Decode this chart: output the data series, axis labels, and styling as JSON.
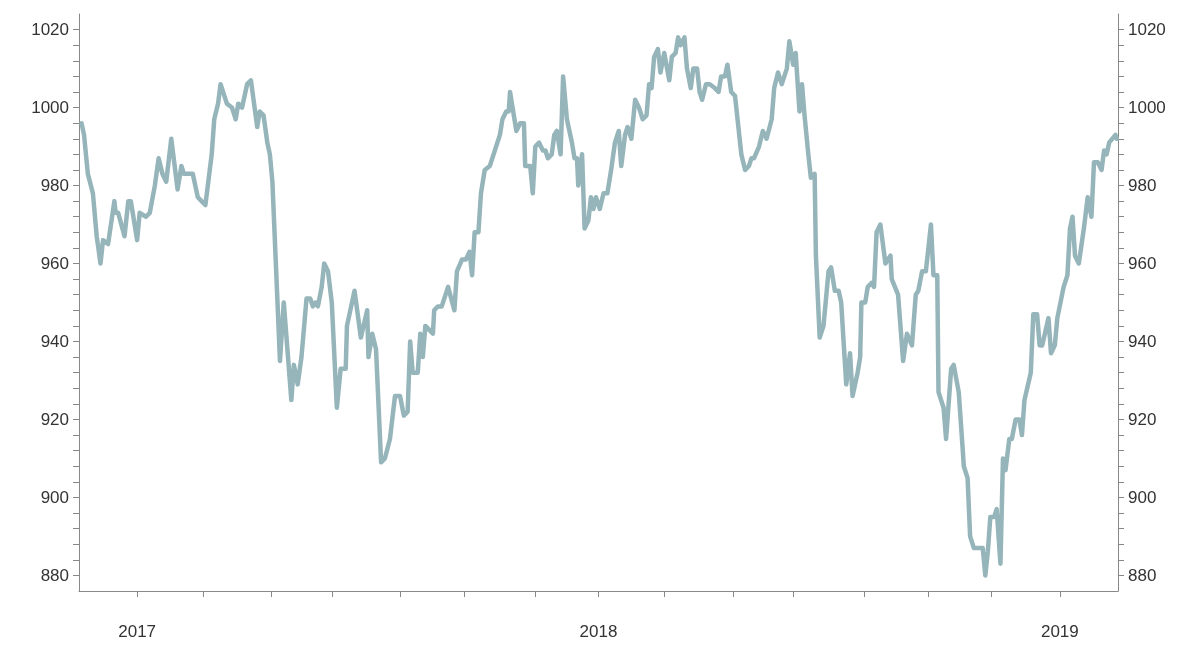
{
  "chart_data": {
    "type": "line",
    "marker": "none",
    "line_style": "solid",
    "xlim": [
      "2016-11-16",
      "2019-02-16"
    ],
    "xticks": [
      {
        "value": "2017-01-01",
        "label": "2017"
      },
      {
        "value": "2017-02-22",
        "label": null
      },
      {
        "value": "2017-04-17",
        "label": null
      },
      {
        "value": "2017-06-04",
        "label": null
      },
      {
        "value": "2017-07-28",
        "label": null
      },
      {
        "value": "2017-09-17",
        "label": null
      },
      {
        "value": "2017-11-12",
        "label": null
      },
      {
        "value": "2018-01-01",
        "label": "2018"
      },
      {
        "value": "2018-02-22",
        "label": null
      },
      {
        "value": "2018-04-18",
        "label": null
      },
      {
        "value": "2018-06-04",
        "label": null
      },
      {
        "value": "2018-07-30",
        "label": null
      },
      {
        "value": "2018-09-19",
        "label": null
      },
      {
        "value": "2018-11-08",
        "label": null
      },
      {
        "value": "2019-01-01",
        "label": "2019"
      }
    ],
    "ylim": [
      876,
      1024
    ],
    "yticks": [
      880,
      {
        "value": 884,
        "label": null
      },
      {
        "value": 888,
        "label": null
      },
      {
        "value": 892,
        "label": null
      },
      {
        "value": 896,
        "label": null
      },
      900,
      {
        "value": 904,
        "label": null
      },
      {
        "value": 908,
        "label": null
      },
      {
        "value": 912,
        "label": null
      },
      {
        "value": 916,
        "label": null
      },
      920,
      {
        "value": 924,
        "label": null
      },
      {
        "value": 928,
        "label": null
      },
      {
        "value": 932,
        "label": null
      },
      {
        "value": 936,
        "label": null
      },
      940,
      {
        "value": 944,
        "label": null
      },
      {
        "value": 948,
        "label": null
      },
      {
        "value": 952,
        "label": null
      },
      {
        "value": 956,
        "label": null
      },
      960,
      {
        "value": 964,
        "label": null
      },
      {
        "value": 968,
        "label": null
      },
      {
        "value": 972,
        "label": null
      },
      {
        "value": 976,
        "label": null
      },
      980,
      {
        "value": 984,
        "label": null
      },
      {
        "value": 988,
        "label": null
      },
      {
        "value": 992,
        "label": null
      },
      {
        "value": 996,
        "label": null
      },
      1000,
      {
        "value": 1004,
        "label": null
      },
      {
        "value": 1008,
        "label": null
      },
      {
        "value": 1012,
        "label": null
      },
      {
        "value": 1016,
        "label": null
      },
      1020
    ],
    "y2lim": [
      876,
      1024
    ],
    "y2ticks": [
      880,
      {
        "value": 884,
        "label": null
      },
      {
        "value": 888,
        "label": null
      },
      {
        "value": 892,
        "label": null
      },
      {
        "value": 896,
        "label": null
      },
      900,
      {
        "value": 904,
        "label": null
      },
      {
        "value": 908,
        "label": null
      },
      {
        "value": 912,
        "label": null
      },
      {
        "value": 916,
        "label": null
      },
      920,
      {
        "value": 924,
        "label": null
      },
      {
        "value": 928,
        "label": null
      },
      {
        "value": 932,
        "label": null
      },
      {
        "value": 936,
        "label": null
      },
      940,
      {
        "value": 944,
        "label": null
      },
      {
        "value": 948,
        "label": null
      },
      {
        "value": 952,
        "label": null
      },
      {
        "value": 956,
        "label": null
      },
      960,
      {
        "value": 964,
        "label": null
      },
      {
        "value": 968,
        "label": null
      },
      {
        "value": 972,
        "label": null
      },
      {
        "value": 976,
        "label": null
      },
      980,
      {
        "value": 984,
        "label": null
      },
      {
        "value": 988,
        "label": null
      },
      {
        "value": 992,
        "label": null
      },
      {
        "value": 996,
        "label": null
      },
      1000,
      {
        "value": 1004,
        "label": null
      },
      {
        "value": 1008,
        "label": null
      },
      {
        "value": 1012,
        "label": null
      },
      {
        "value": 1016,
        "label": null
      },
      1020
    ],
    "series": [
      {
        "color": "#95b5ba",
        "x": [
          "2016-11-18",
          "2016-11-20",
          "2016-11-23",
          "2016-11-27",
          "2016-11-30",
          "2016-12-03",
          "2016-12-05",
          "2016-12-09",
          "2016-12-14",
          "2016-12-15",
          "2016-12-17",
          "2016-12-22",
          "2016-12-25",
          "2016-12-27",
          "2017-01-01",
          "2017-01-03",
          "2017-01-08",
          "2017-01-11",
          "2017-01-15",
          "2017-01-18",
          "2017-01-21",
          "2017-01-24",
          "2017-01-28",
          "2017-02-02",
          "2017-02-05",
          "2017-02-07",
          "2017-02-14",
          "2017-02-18",
          "2017-02-21",
          "2017-02-24",
          "2017-03-01",
          "2017-03-03",
          "2017-03-06",
          "2017-03-08",
          "2017-03-13",
          "2017-03-17",
          "2017-03-20",
          "2017-03-22",
          "2017-03-25",
          "2017-03-29",
          "2017-04-01",
          "2017-04-06",
          "2017-04-08",
          "2017-04-11",
          "2017-04-14",
          "2017-04-16",
          "2017-04-18",
          "2017-04-24",
          "2017-04-27",
          "2017-05-03",
          "2017-05-05",
          "2017-05-08",
          "2017-05-11",
          "2017-05-15",
          "2017-05-18",
          "2017-05-20",
          "2017-05-22",
          "2017-05-24",
          "2017-05-27",
          "2017-05-29",
          "2017-06-01",
          "2017-06-04",
          "2017-06-08",
          "2017-06-11",
          "2017-06-15",
          "2017-06-16",
          "2017-06-22",
          "2017-06-27",
          "2017-07-02",
          "2017-07-03",
          "2017-07-06",
          "2017-07-09",
          "2017-07-13",
          "2017-07-16",
          "2017-07-20",
          "2017-07-24",
          "2017-07-28",
          "2017-07-31",
          "2017-08-03",
          "2017-08-05",
          "2017-08-07",
          "2017-08-11",
          "2017-08-13",
          "2017-08-15",
          "2017-08-17",
          "2017-08-23",
          "2017-08-24",
          "2017-08-27",
          "2017-08-30",
          "2017-09-04",
          "2017-09-09",
          "2017-09-11",
          "2017-09-15",
          "2017-09-18",
          "2017-09-21",
          "2017-09-23",
          "2017-09-25",
          "2017-09-28",
          "2017-09-30",
          "2017-10-03",
          "2017-10-07",
          "2017-10-15",
          "2017-10-17",
          "2017-10-20",
          "2017-10-22",
          "2017-10-23",
          "2017-10-28",
          "2017-10-31",
          "2017-11-03",
          "2017-11-04",
          "2017-11-08",
          "2017-11-10",
          "2017-11-12",
          "2017-11-15",
          "2017-11-18",
          "2017-11-20",
          "2017-11-22",
          "2017-11-25",
          "2017-11-27",
          "2017-11-29",
          "2017-12-02",
          "2017-12-04",
          "2017-12-07",
          "2017-12-11",
          "2017-12-13",
          "2017-12-15",
          "2017-12-16",
          "2017-12-19",
          "2017-12-21",
          "2017-12-24",
          "2017-12-26",
          "2017-12-28",
          "2017-12-30",
          "2018-01-02",
          "2018-01-05",
          "2018-01-08",
          "2018-01-11",
          "2018-01-14",
          "2018-01-17",
          "2018-01-19",
          "2018-01-22",
          "2018-01-24",
          "2018-01-27",
          "2018-01-30",
          "2018-02-02",
          "2018-02-05",
          "2018-02-08",
          "2018-02-10",
          "2018-02-12",
          "2018-02-14",
          "2018-02-17",
          "2018-02-19",
          "2018-02-22",
          "2018-02-26",
          "2018-02-28",
          "2018-03-03",
          "2018-03-05",
          "2018-03-07",
          "2018-03-10",
          "2018-03-12",
          "2018-03-15",
          "2018-03-17",
          "2018-03-20",
          "2018-03-22",
          "2018-03-24",
          "2018-03-27",
          "2018-03-30",
          "2018-04-03",
          "2018-04-06",
          "2018-04-08",
          "2018-04-11",
          "2018-04-13",
          "2018-04-16",
          "2018-04-19",
          "2018-04-24",
          "2018-04-27",
          "2018-04-30",
          "2018-05-02",
          "2018-05-04",
          "2018-05-08",
          "2018-05-11",
          "2018-05-14",
          "2018-05-18",
          "2018-05-20",
          "2018-05-23",
          "2018-05-26",
          "2018-05-30",
          "2018-06-01",
          "2018-06-04",
          "2018-06-06",
          "2018-06-09",
          "2018-06-11",
          "2018-06-13",
          "2018-06-16",
          "2018-06-18",
          "2018-06-21",
          "2018-06-22",
          "2018-06-25",
          "2018-06-28",
          "2018-07-02",
          "2018-07-04",
          "2018-07-07",
          "2018-07-10",
          "2018-07-12",
          "2018-07-16",
          "2018-07-19",
          "2018-07-21",
          "2018-07-25",
          "2018-07-27",
          "2018-07-28",
          "2018-07-31",
          "2018-08-02",
          "2018-08-05",
          "2018-08-07",
          "2018-08-09",
          "2018-08-12",
          "2018-08-16",
          "2018-08-20",
          "2018-08-21",
          "2018-08-26",
          "2018-08-30",
          "2018-09-02",
          "2018-09-06",
          "2018-09-09",
          "2018-09-11",
          "2018-09-14",
          "2018-09-17",
          "2018-09-19",
          "2018-09-21",
          "2018-09-23",
          "2018-09-26",
          "2018-09-27",
          "2018-10-01",
          "2018-10-03",
          "2018-10-07",
          "2018-10-09",
          "2018-10-13",
          "2018-10-16",
          "2018-10-17",
          "2018-10-20",
          "2018-10-22",
          "2018-10-25",
          "2018-11-01",
          "2018-11-03",
          "2018-11-05",
          "2018-11-07",
          "2018-11-10",
          "2018-11-12",
          "2018-11-15",
          "2018-11-17",
          "2018-11-19",
          "2018-11-22",
          "2018-11-24",
          "2018-11-27",
          "2018-11-30",
          "2018-12-02",
          "2018-12-04",
          "2018-12-09",
          "2018-12-11",
          "2018-12-14",
          "2018-12-16",
          "2018-12-18",
          "2018-12-23",
          "2018-12-25",
          "2018-12-28",
          "2018-12-30",
          "2019-01-04",
          "2019-01-07",
          "2019-01-09",
          "2019-01-11",
          "2019-01-13",
          "2019-01-16",
          "2019-01-20",
          "2019-01-23",
          "2019-01-26",
          "2019-01-28",
          "2019-01-31",
          "2019-02-03",
          "2019-02-05",
          "2019-02-07",
          "2019-02-09",
          "2019-02-14",
          "2019-02-15"
        ],
        "values": [
          996,
          993,
          983,
          978,
          967,
          960,
          966,
          965,
          976,
          973,
          973,
          967,
          976,
          976,
          966,
          973,
          972,
          973,
          980,
          987,
          983,
          981,
          992,
          979,
          985,
          983,
          983,
          977,
          976,
          975,
          988,
          997,
          1001,
          1006,
          1001,
          1000,
          997,
          1001,
          1000,
          1006,
          1007,
          995,
          999,
          998,
          991,
          988,
          981,
          935,
          950,
          925,
          934,
          929,
          936,
          951,
          951,
          949,
          950,
          949,
          954,
          960,
          958,
          950,
          923,
          933,
          933,
          944,
          953,
          941,
          948,
          936,
          942,
          938,
          909,
          910,
          915,
          926,
          926,
          921,
          922,
          940,
          932,
          932,
          942,
          936,
          944,
          942,
          948,
          949,
          949,
          954,
          948,
          958,
          961,
          961,
          963,
          957,
          968,
          968,
          978,
          984,
          985,
          993,
          997,
          999,
          999,
          1004,
          994,
          996,
          996,
          985,
          985,
          978,
          990,
          991,
          989,
          989,
          987,
          988,
          993,
          994,
          988,
          1008,
          997,
          991,
          987,
          987,
          980,
          988,
          969,
          971,
          977,
          974,
          977,
          974,
          978,
          978,
          984,
          991,
          994,
          985,
          993,
          995,
          992,
          1002,
          1000,
          997,
          998,
          1006,
          1005,
          1013,
          1015,
          1009,
          1014,
          1007,
          1013,
          1014,
          1018,
          1016,
          1018,
          1010,
          1005,
          1010,
          1010,
          1004,
          1002,
          1006,
          1006,
          1005,
          1004,
          1008,
          1008,
          1011,
          1004,
          1003,
          988,
          984,
          985,
          987,
          987,
          990,
          994,
          992,
          997,
          1005,
          1009,
          1006,
          1010,
          1017,
          1011,
          1014,
          999,
          1006,
          998,
          988,
          982,
          983,
          962,
          941,
          944,
          958,
          959,
          953,
          953,
          950,
          929,
          937,
          926,
          932,
          936,
          950,
          950,
          954,
          955,
          954,
          968,
          970,
          960,
          962,
          956,
          952,
          935,
          942,
          939,
          952,
          953,
          958,
          958,
          964,
          970,
          957,
          957,
          927,
          923,
          915,
          933,
          934,
          927,
          913,
          908,
          905,
          890,
          887,
          887,
          880,
          886,
          895,
          895,
          897,
          883,
          910,
          907,
          915,
          915,
          920,
          920,
          916,
          925,
          932,
          947,
          947,
          939,
          939,
          946,
          937,
          939,
          946,
          954,
          957,
          969,
          972,
          962,
          960,
          969,
          977,
          972,
          986,
          986,
          984,
          989,
          988,
          991,
          993,
          992
        ]
      }
    ]
  }
}
